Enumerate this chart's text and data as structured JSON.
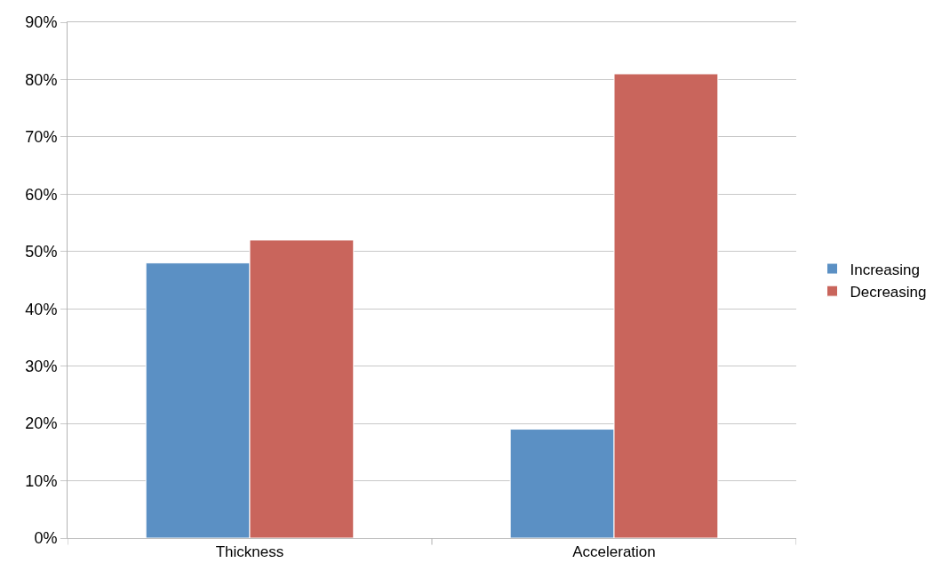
{
  "chart_data": {
    "type": "bar",
    "categories": [
      "Thickness",
      "Acceleration"
    ],
    "series": [
      {
        "name": "Increasing",
        "color": "#5b90c4",
        "values": [
          48,
          19
        ]
      },
      {
        "name": "Decreasing",
        "color": "#c9655c",
        "values": [
          52,
          81
        ]
      }
    ],
    "ylim": [
      0,
      90
    ],
    "yticks": [
      {
        "value": 0,
        "label": "0%"
      },
      {
        "value": 10,
        "label": "10%"
      },
      {
        "value": 20,
        "label": "20%"
      },
      {
        "value": 30,
        "label": "30%"
      },
      {
        "value": 40,
        "label": "40%"
      },
      {
        "value": 50,
        "label": "50%"
      },
      {
        "value": 60,
        "label": "60%"
      },
      {
        "value": 70,
        "label": "70%"
      },
      {
        "value": 80,
        "label": "80%"
      },
      {
        "value": 90,
        "label": "90%"
      }
    ],
    "grid": "y",
    "legend": "right"
  }
}
